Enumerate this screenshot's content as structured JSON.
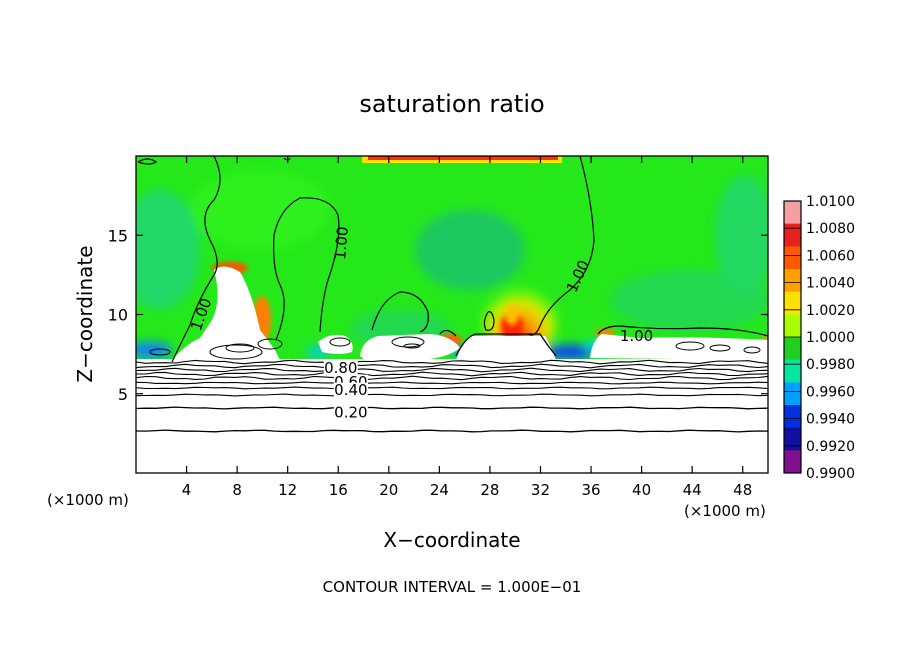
{
  "chart_data": {
    "type": "heatmap",
    "title": "saturation ratio",
    "xlabel": "X−coordinate",
    "ylabel": "Z−coordinate",
    "x_unit_left": "(×1000 m)",
    "x_unit_right": "(×1000 m)",
    "xlim": [
      0,
      50
    ],
    "ylim": [
      0,
      20
    ],
    "x_ticks": [
      4,
      8,
      12,
      16,
      20,
      24,
      28,
      32,
      36,
      40,
      44,
      48
    ],
    "y_ticks": [
      5,
      10,
      15
    ],
    "footer": "CONTOUR INTERVAL = 1.000E−01",
    "colorbar": {
      "levels": [
        "1.0100",
        "1.0080",
        "1.0060",
        "1.0040",
        "1.0020",
        "1.0000",
        "0.9980",
        "0.9960",
        "0.9940",
        "0.9920",
        "0.9900"
      ],
      "colors": [
        "#f4a0a0",
        "#e82020",
        "#ff5a00",
        "#ffa000",
        "#ffe000",
        "#a8ff00",
        "#20d020",
        "#00e8a0",
        "#00a0ff",
        "#0030e0",
        "#1010a0",
        "#801090"
      ]
    },
    "contour_labels": [
      {
        "text": "1.00",
        "x": 5.2,
        "y": 10.0,
        "rot": -70
      },
      {
        "text": "1.00",
        "x": 16.3,
        "y": 14.5,
        "rot": -85
      },
      {
        "text": "1.00",
        "x": 35.0,
        "y": 12.4,
        "rot": -65
      },
      {
        "text": "1.00",
        "x": 39.6,
        "y": 8.6,
        "rot": 0
      },
      {
        "text": "0.80",
        "x": 16.2,
        "y": 6.6,
        "rot": 0
      },
      {
        "text": "0.60",
        "x": 17.0,
        "y": 5.7,
        "rot": 0
      },
      {
        "text": "0.40",
        "x": 17.0,
        "y": 5.2,
        "rot": 0
      },
      {
        "text": "0.20",
        "x": 17.0,
        "y": 3.8,
        "rot": 0
      }
    ]
  }
}
